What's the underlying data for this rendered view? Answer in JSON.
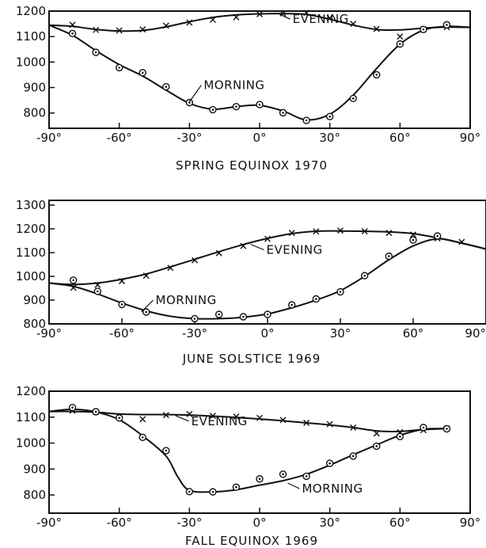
{
  "chart_data": [
    {
      "type": "scatter",
      "title": "SPRING EQUINOX 1970",
      "x_tick_labels": [
        "-90°",
        "-60°",
        "-30°",
        "0°",
        "30°",
        "60°",
        "90°"
      ],
      "y_tick_labels": [
        "800",
        "900",
        "1000",
        "1100",
        "1200"
      ],
      "xlim": [
        -90,
        90
      ],
      "ylim": [
        740,
        1200
      ],
      "grid": false,
      "series": [
        {
          "name": "EVENING",
          "marker": "x",
          "points": [
            [
              -80,
              1146
            ],
            [
              -70,
              1126
            ],
            [
              -60,
              1124
            ],
            [
              -50,
              1128
            ],
            [
              -40,
              1143
            ],
            [
              -30,
              1155
            ],
            [
              -20,
              1166
            ],
            [
              -10,
              1176
            ],
            [
              0,
              1188
            ],
            [
              10,
              1191
            ],
            [
              20,
              1193
            ],
            [
              30,
              1173
            ],
            [
              40,
              1150
            ],
            [
              50,
              1130
            ],
            [
              60,
              1100
            ],
            [
              70,
              1128
            ],
            [
              80,
              1137
            ]
          ],
          "curve": [
            [
              -90,
              1145
            ],
            [
              -80,
              1140
            ],
            [
              -70,
              1128
            ],
            [
              -60,
              1122
            ],
            [
              -50,
              1124
            ],
            [
              -40,
              1138
            ],
            [
              -30,
              1158
            ],
            [
              -20,
              1175
            ],
            [
              -10,
              1185
            ],
            [
              0,
              1189
            ],
            [
              10,
              1190
            ],
            [
              20,
              1187
            ],
            [
              30,
              1168
            ],
            [
              40,
              1145
            ],
            [
              50,
              1128
            ],
            [
              60,
              1126
            ],
            [
              70,
              1133
            ],
            [
              80,
              1137
            ],
            [
              90,
              1136
            ]
          ]
        },
        {
          "name": "MORNING",
          "marker": "o",
          "points": [
            [
              -80,
              1112
            ],
            [
              -70,
              1038
            ],
            [
              -60,
              978
            ],
            [
              -50,
              958
            ],
            [
              -40,
              903
            ],
            [
              -30,
              841
            ],
            [
              -20,
              813
            ],
            [
              -10,
              825
            ],
            [
              0,
              833
            ],
            [
              10,
              801
            ],
            [
              20,
              771
            ],
            [
              30,
              786
            ],
            [
              40,
              857
            ],
            [
              50,
              950
            ],
            [
              60,
              1071
            ],
            [
              70,
              1128
            ],
            [
              80,
              1146
            ]
          ],
          "curve": [
            [
              -90,
              1145
            ],
            [
              -80,
              1105
            ],
            [
              -70,
              1045
            ],
            [
              -60,
              990
            ],
            [
              -50,
              945
            ],
            [
              -40,
              890
            ],
            [
              -30,
              838
            ],
            [
              -20,
              815
            ],
            [
              -10,
              825
            ],
            [
              0,
              830
            ],
            [
              10,
              808
            ],
            [
              20,
              773
            ],
            [
              30,
              795
            ],
            [
              40,
              870
            ],
            [
              50,
              975
            ],
            [
              60,
              1070
            ],
            [
              70,
              1125
            ],
            [
              80,
              1140
            ],
            [
              90,
              1136
            ]
          ]
        }
      ],
      "annotations": [
        {
          "text": "EVENING",
          "series": "EVENING",
          "at": [
            8,
            1190
          ]
        },
        {
          "text": "MORNING",
          "series": "MORNING",
          "at": [
            -30,
            844
          ]
        }
      ]
    },
    {
      "type": "scatter",
      "title": "JUNE SOLSTICE 1969",
      "x_tick_labels": [
        "-90°",
        "-60°",
        "-30°",
        "0°",
        "30°",
        "60°",
        "90°"
      ],
      "y_tick_labels": [
        "800",
        "900",
        "1000",
        "1100",
        "1200",
        "1300"
      ],
      "xlim": [
        -90,
        90
      ],
      "ylim": [
        800,
        1320
      ],
      "grid": false,
      "series": [
        {
          "name": "EVENING",
          "marker": "x",
          "points": [
            [
              -80,
              952
            ],
            [
              -70,
              964
            ],
            [
              -60,
              980
            ],
            [
              -50,
              1003
            ],
            [
              -40,
              1036
            ],
            [
              -30,
              1068
            ],
            [
              -20,
              1098
            ],
            [
              -10,
              1128
            ],
            [
              0,
              1158
            ],
            [
              10,
              1183
            ],
            [
              20,
              1189
            ],
            [
              30,
              1193
            ],
            [
              40,
              1190
            ],
            [
              50,
              1183
            ],
            [
              60,
              1176
            ],
            [
              70,
              1160
            ],
            [
              80,
              1145
            ]
          ],
          "curve": [
            [
              -90,
              972
            ],
            [
              -80,
              966
            ],
            [
              -70,
              972
            ],
            [
              -60,
              988
            ],
            [
              -50,
              1010
            ],
            [
              -40,
              1040
            ],
            [
              -30,
              1072
            ],
            [
              -20,
              1104
            ],
            [
              -10,
              1134
            ],
            [
              0,
              1160
            ],
            [
              10,
              1180
            ],
            [
              20,
              1190
            ],
            [
              30,
              1191
            ],
            [
              40,
              1190
            ],
            [
              50,
              1187
            ],
            [
              60,
              1180
            ],
            [
              70,
              1162
            ],
            [
              80,
              1140
            ],
            [
              90,
              1115
            ]
          ]
        },
        {
          "name": "MORNING",
          "marker": "o",
          "points": [
            [
              -80,
              984
            ],
            [
              -70,
              937
            ],
            [
              -60,
              882
            ],
            [
              -50,
              850
            ],
            [
              -30,
              822
            ],
            [
              -20,
              840
            ],
            [
              -10,
              830
            ],
            [
              0,
              840
            ],
            [
              10,
              880
            ],
            [
              20,
              905
            ],
            [
              30,
              935
            ],
            [
              40,
              1003
            ],
            [
              50,
              1085
            ],
            [
              60,
              1153
            ],
            [
              70,
              1170
            ]
          ],
          "curve": [
            [
              -90,
              972
            ],
            [
              -80,
              958
            ],
            [
              -70,
              926
            ],
            [
              -60,
              888
            ],
            [
              -50,
              855
            ],
            [
              -40,
              832
            ],
            [
              -30,
              822
            ],
            [
              -20,
              822
            ],
            [
              -10,
              828
            ],
            [
              0,
              842
            ],
            [
              10,
              868
            ],
            [
              20,
              900
            ],
            [
              30,
              940
            ],
            [
              40,
              1000
            ],
            [
              50,
              1070
            ],
            [
              60,
              1128
            ],
            [
              70,
              1158
            ],
            [
              80,
              1140
            ],
            [
              90,
              1115
            ]
          ]
        }
      ],
      "annotations": [
        {
          "text": "EVENING",
          "series": "EVENING",
          "at": [
            -7,
            1135
          ]
        },
        {
          "text": "MORNING",
          "series": "MORNING",
          "at": [
            -52,
            850
          ]
        }
      ]
    },
    {
      "type": "scatter",
      "title": "FALL EQUINOX 1969",
      "x_tick_labels": [
        "-90°",
        "-60°",
        "-30°",
        "0°",
        "30°",
        "60°",
        "90°"
      ],
      "y_tick_labels": [
        "800",
        "900",
        "1000",
        "1100",
        "1200"
      ],
      "xlim": [
        -90,
        90
      ],
      "ylim": [
        730,
        1200
      ],
      "grid": false,
      "series": [
        {
          "name": "EVENING",
          "marker": "x",
          "points": [
            [
              -80,
              1125
            ],
            [
              -70,
              1120
            ],
            [
              -60,
              1103
            ],
            [
              -50,
              1092
            ],
            [
              -40,
              1108
            ],
            [
              -30,
              1112
            ],
            [
              -20,
              1105
            ],
            [
              -10,
              1102
            ],
            [
              0,
              1097
            ],
            [
              10,
              1089
            ],
            [
              20,
              1078
            ],
            [
              30,
              1073
            ],
            [
              40,
              1060
            ],
            [
              50,
              1037
            ],
            [
              60,
              1042
            ],
            [
              70,
              1050
            ],
            [
              80,
              1056
            ]
          ],
          "curve": [
            [
              -90,
              1122
            ],
            [
              -80,
              1122
            ],
            [
              -70,
              1119
            ],
            [
              -60,
              1112
            ],
            [
              -50,
              1110
            ],
            [
              -40,
              1110
            ],
            [
              -30,
              1108
            ],
            [
              -20,
              1104
            ],
            [
              -10,
              1099
            ],
            [
              0,
              1093
            ],
            [
              10,
              1086
            ],
            [
              20,
              1078
            ],
            [
              30,
              1070
            ],
            [
              40,
              1060
            ],
            [
              50,
              1047
            ],
            [
              60,
              1045
            ],
            [
              70,
              1052
            ],
            [
              80,
              1056
            ]
          ]
        },
        {
          "name": "MORNING",
          "marker": "o",
          "points": [
            [
              -80,
              1137
            ],
            [
              -70,
              1121
            ],
            [
              -60,
              1097
            ],
            [
              -50,
              1022
            ],
            [
              -40,
              971
            ],
            [
              -30,
              813
            ],
            [
              -20,
              812
            ],
            [
              -10,
              830
            ],
            [
              0,
              862
            ],
            [
              10,
              880
            ],
            [
              20,
              872
            ],
            [
              30,
              922
            ],
            [
              40,
              950
            ],
            [
              50,
              988
            ],
            [
              60,
              1025
            ],
            [
              70,
              1060
            ],
            [
              80,
              1055
            ]
          ],
          "curve": [
            [
              -90,
              1122
            ],
            [
              -80,
              1130
            ],
            [
              -70,
              1120
            ],
            [
              -60,
              1090
            ],
            [
              -50,
              1028
            ],
            [
              -40,
              950
            ],
            [
              -35,
              870
            ],
            [
              -30,
              818
            ],
            [
              -20,
              812
            ],
            [
              -10,
              820
            ],
            [
              0,
              838
            ],
            [
              10,
              855
            ],
            [
              20,
              880
            ],
            [
              30,
              915
            ],
            [
              40,
              955
            ],
            [
              50,
              993
            ],
            [
              60,
              1030
            ],
            [
              70,
              1053
            ],
            [
              80,
              1056
            ]
          ]
        }
      ],
      "annotations": [
        {
          "text": "EVENING",
          "series": "EVENING",
          "at": [
            -36,
            1106
          ]
        },
        {
          "text": "MORNING",
          "series": "MORNING",
          "at": [
            12,
            846
          ]
        }
      ]
    }
  ]
}
